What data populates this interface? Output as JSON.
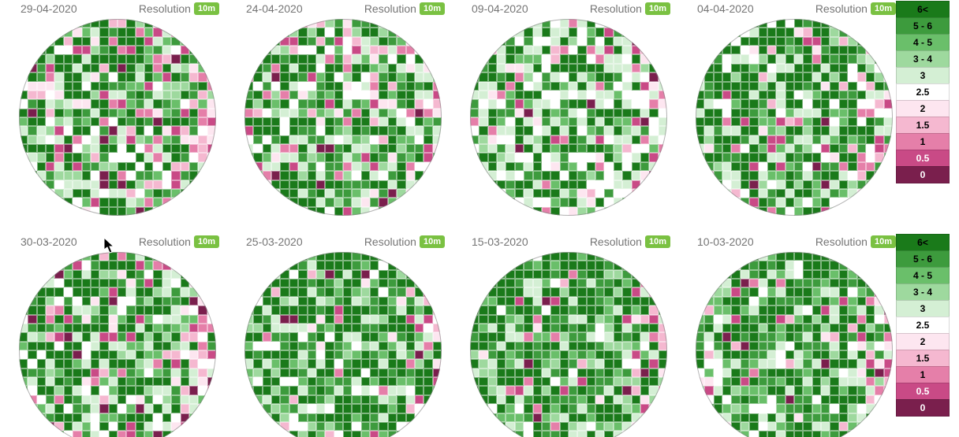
{
  "resolution_label": "Resolution",
  "resolution_badge": "10m",
  "header_text_color": "#757575",
  "badge_bg": "#7ac142",
  "badge_fg": "#ffffff",
  "grid_dim": 22,
  "panels": {
    "row1": [
      {
        "date": "29-04-2020",
        "seed": 11,
        "greenBias": 0.58,
        "pinkBias": 0.22
      },
      {
        "date": "24-04-2020",
        "seed": 22,
        "greenBias": 0.66,
        "pinkBias": 0.16
      },
      {
        "date": "09-04-2020",
        "seed": 33,
        "greenBias": 0.48,
        "pinkBias": 0.12
      },
      {
        "date": "04-04-2020",
        "seed": 44,
        "greenBias": 0.7,
        "pinkBias": 0.14
      }
    ],
    "row2": [
      {
        "date": "30-03-2020",
        "seed": 55,
        "greenBias": 0.62,
        "pinkBias": 0.18,
        "cursor": true
      },
      {
        "date": "25-03-2020",
        "seed": 66,
        "greenBias": 0.8,
        "pinkBias": 0.06
      },
      {
        "date": "15-03-2020",
        "seed": 77,
        "greenBias": 0.82,
        "pinkBias": 0.08
      },
      {
        "date": "10-03-2020",
        "seed": 88,
        "greenBias": 0.72,
        "pinkBias": 0.1
      }
    ]
  },
  "legend": [
    {
      "label": "6<",
      "bg": "#1a7a1a",
      "fg": "#000000"
    },
    {
      "label": "5 - 6",
      "bg": "#3d9b3d",
      "fg": "#000000"
    },
    {
      "label": "4 - 5",
      "bg": "#6abf6a",
      "fg": "#000000"
    },
    {
      "label": "3 - 4",
      "bg": "#9ed99e",
      "fg": "#000000"
    },
    {
      "label": "3",
      "bg": "#d4efd4",
      "fg": "#000000"
    },
    {
      "label": "2.5",
      "bg": "#ffffff",
      "fg": "#000000"
    },
    {
      "label": "2",
      "bg": "#fde6f0",
      "fg": "#000000"
    },
    {
      "label": "1.5",
      "bg": "#f5b8d0",
      "fg": "#000000"
    },
    {
      "label": "1",
      "bg": "#e57fa9",
      "fg": "#000000"
    },
    {
      "label": "0.5",
      "bg": "#c94a86",
      "fg": "#ffffff"
    },
    {
      "label": "0",
      "bg": "#7a1f4d",
      "fg": "#ffffff"
    }
  ],
  "palette_greens": [
    "#1a7a1a",
    "#3d9b3d",
    "#6abf6a",
    "#9ed99e",
    "#d4efd4"
  ],
  "palette_neutral": "#ffffff",
  "palette_pinks": [
    "#fde6f0",
    "#f5b8d0",
    "#e57fa9",
    "#c94a86",
    "#7a1f4d"
  ],
  "cursor_svg_fill": "#000000"
}
